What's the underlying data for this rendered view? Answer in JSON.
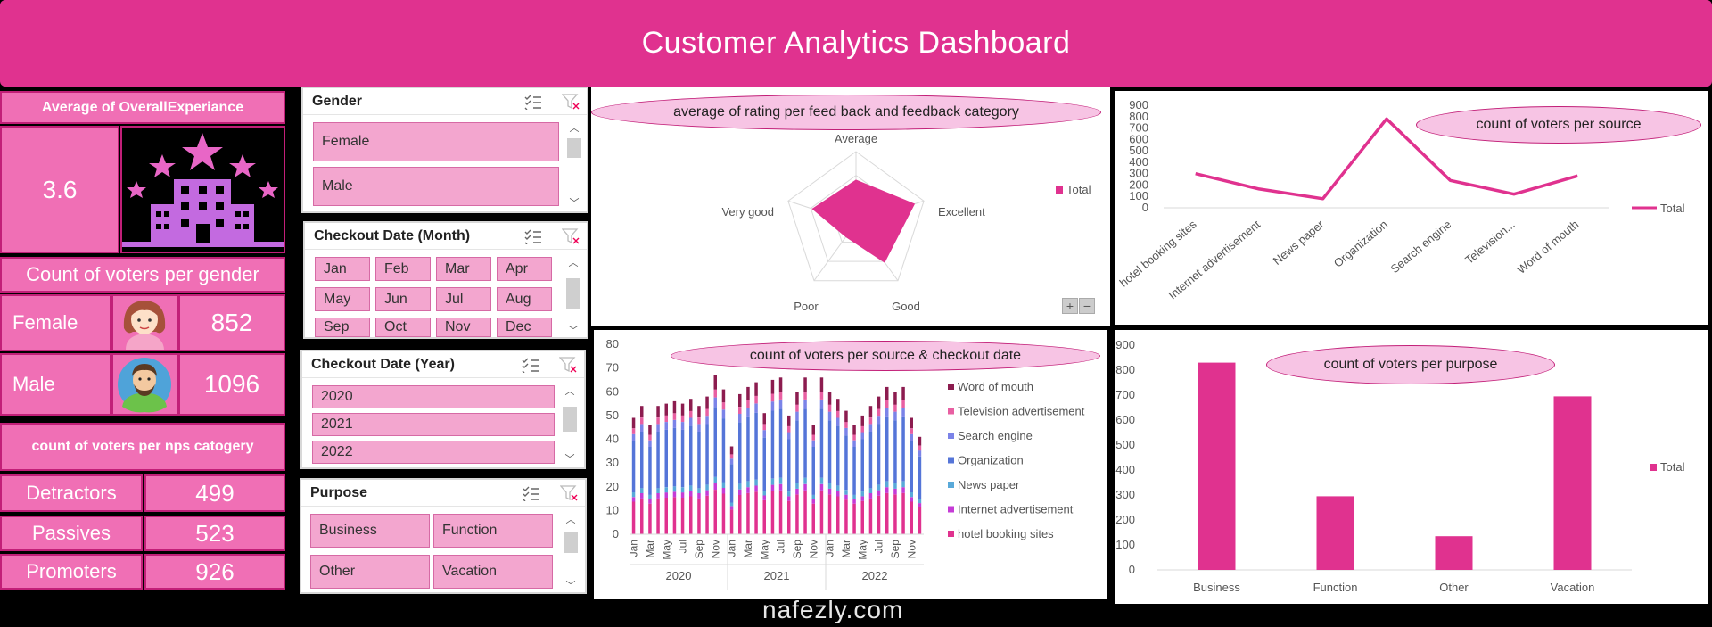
{
  "title": "Customer Analytics Dashboard",
  "kpi_experience": {
    "label": "Average of OverallExperiance",
    "value": "3.6",
    "icon": "hotel-stars-icon"
  },
  "gender_panel": {
    "title": "Count of voters per gender",
    "rows": [
      {
        "label": "Female",
        "value": "852",
        "icon": "female-avatar-icon"
      },
      {
        "label": "Male",
        "value": "1096",
        "icon": "male-avatar-icon"
      }
    ]
  },
  "nps_panel": {
    "title": "count of voters per nps catogery",
    "rows": [
      {
        "label": "Detractors",
        "value": "499"
      },
      {
        "label": "Passives",
        "value": "523"
      },
      {
        "label": "Promoters",
        "value": "926"
      }
    ]
  },
  "slicers": {
    "gender": {
      "title": "Gender",
      "items": [
        "Female",
        "Male"
      ]
    },
    "month": {
      "title": "Checkout Date (Month)",
      "items": [
        "Jan",
        "Feb",
        "Mar",
        "Apr",
        "May",
        "Jun",
        "Jul",
        "Aug",
        "Sep",
        "Oct",
        "Nov",
        "Dec"
      ]
    },
    "year": {
      "title": "Checkout Date (Year)",
      "items": [
        "2020",
        "2021",
        "2022"
      ]
    },
    "purpose": {
      "title": "Purpose",
      "items": [
        "Business",
        "Function",
        "Other",
        "Vacation"
      ]
    }
  },
  "radar_controls": {
    "plus": "+",
    "minus": "−"
  },
  "watermark": "nafezly.com",
  "colors": {
    "accent": "#e0328f",
    "pink_box": "#f06fb5",
    "slicer_btn": "#f3a6cf",
    "oval": "#f7c4e4"
  },
  "chart_data": [
    {
      "type": "radar",
      "title": "average of rating per feed back and feedback category",
      "axes": [
        "Average",
        "Excellent",
        "Good",
        "Poor",
        "Very good"
      ],
      "series": [
        {
          "name": "Total",
          "values": [
            3.0,
            4.3,
            3.4,
            1.2,
            3.2
          ]
        }
      ],
      "legend": "right"
    },
    {
      "type": "line",
      "title": "count of voters per source",
      "categories": [
        "hotel booking sites",
        "Internet advertisement",
        "News paper",
        "Organization",
        "Search engine",
        "Television...",
        "Word of mouth"
      ],
      "series": [
        {
          "name": "Total",
          "values": [
            300,
            165,
            80,
            780,
            240,
            120,
            280
          ]
        }
      ],
      "ylim": [
        0,
        900
      ],
      "yticks": [
        0,
        100,
        200,
        300,
        400,
        500,
        600,
        700,
        800,
        900
      ],
      "legend": "right"
    },
    {
      "type": "bar",
      "stacked": true,
      "title": "count of voters per source & checkout date",
      "ylim": [
        0,
        80
      ],
      "yticks": [
        0,
        10,
        20,
        30,
        40,
        50,
        60,
        70,
        80
      ],
      "years": [
        "2020",
        "2021",
        "2022"
      ],
      "x_labels": [
        "Jan",
        "Mar",
        "May",
        "Jul",
        "Sep",
        "Nov",
        "Jan",
        "Mar",
        "May",
        "Jul",
        "Sep",
        "Nov",
        "Jan",
        "Mar",
        "May",
        "Jul",
        "Sep",
        "Nov"
      ],
      "series_names": [
        "Word of mouth",
        "Television advertisement",
        "Search engine",
        "Organization",
        "News paper",
        "Internet advertisement",
        "hotel booking sites"
      ],
      "totals": [
        49,
        54,
        46,
        54,
        55,
        56,
        55,
        57,
        54,
        58,
        67,
        61,
        37,
        59,
        62,
        64,
        51,
        65,
        66,
        50,
        60,
        66,
        46,
        66,
        60,
        57,
        52,
        46,
        50,
        54,
        58,
        62,
        60,
        62,
        49,
        41
      ]
    },
    {
      "type": "bar",
      "title": "count of voters per purpose",
      "categories": [
        "Business",
        "Function",
        "Other",
        "Vacation"
      ],
      "series": [
        {
          "name": "Total",
          "values": [
            830,
            295,
            135,
            695
          ]
        }
      ],
      "ylim": [
        0,
        900
      ],
      "yticks": [
        0,
        100,
        200,
        300,
        400,
        500,
        600,
        700,
        800,
        900
      ],
      "legend": "right"
    }
  ]
}
